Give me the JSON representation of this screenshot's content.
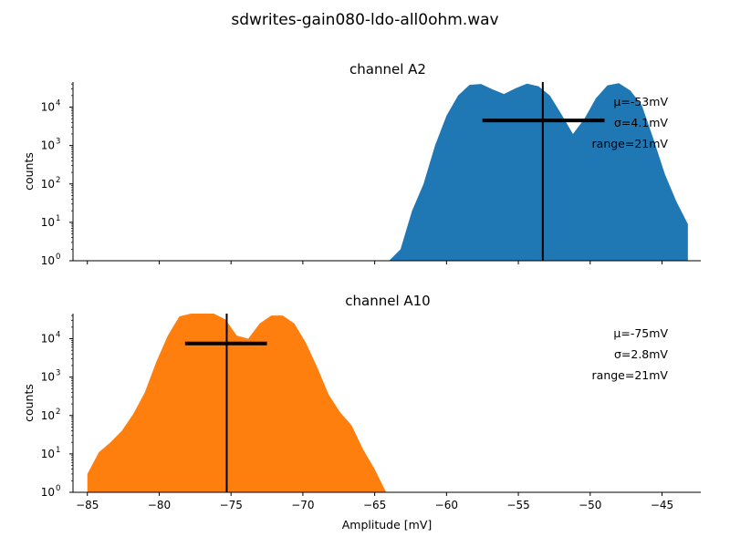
{
  "suptitle": "sdwrites-gain080-ldo-all0ohm.wav",
  "chart_data": [
    {
      "type": "area",
      "title": "channel A2",
      "xlabel": "",
      "ylabel": "counts",
      "yscale": "log",
      "xlim": [
        -86,
        -42.3
      ],
      "ylim": [
        1,
        45000
      ],
      "color": "#1f77b4",
      "x": [
        -64,
        -63.2,
        -62.4,
        -61.6,
        -60.8,
        -60,
        -59.2,
        -58.4,
        -57.6,
        -56.8,
        -56,
        -55.2,
        -54.4,
        -53.6,
        -52.8,
        -52,
        -51.2,
        -50.4,
        -49.6,
        -48.8,
        -48,
        -47.2,
        -46.4,
        -45.6,
        -44.8,
        -44,
        -43.2
      ],
      "y": [
        1,
        2,
        20,
        100,
        1000,
        6000,
        20000,
        38000,
        40000,
        29000,
        22000,
        31000,
        41000,
        35000,
        20000,
        6500,
        2000,
        5000,
        17000,
        37000,
        42000,
        27000,
        11000,
        1500,
        180,
        35,
        9
      ],
      "mean": -53.3,
      "sigma_line": {
        "x": [
          -57.5,
          -49
        ],
        "y": 4500
      },
      "stats": {
        "mu": "μ=-53mV",
        "sigma": "σ=4.1mV",
        "range": "range=21mV"
      }
    },
    {
      "type": "area",
      "title": "channel A10",
      "xlabel": "Amplitude [mV]",
      "ylabel": "counts",
      "yscale": "log",
      "xlim": [
        -86,
        -42.3
      ],
      "ylim": [
        1,
        45000
      ],
      "color": "#ff7f0e",
      "x": [
        -85,
        -84.2,
        -83.4,
        -82.6,
        -81.8,
        -81,
        -80.2,
        -79.4,
        -78.6,
        -77.8,
        -77,
        -76.2,
        -75.4,
        -74.6,
        -73.8,
        -73,
        -72.2,
        -71.4,
        -70.6,
        -69.8,
        -69,
        -68.2,
        -67.4,
        -66.6,
        -65.8,
        -65,
        -64.2
      ],
      "y": [
        3,
        11,
        20,
        40,
        110,
        400,
        2500,
        12000,
        38000,
        48000,
        45000,
        48000,
        32000,
        12000,
        10000,
        25000,
        40000,
        40000,
        25000,
        8000,
        1800,
        350,
        120,
        55,
        13,
        4,
        1
      ],
      "mean": -75.3,
      "sigma_line": {
        "x": [
          -78.2,
          -72.5
        ],
        "y": 7500
      },
      "stats": {
        "mu": "μ=-75mV",
        "sigma": "σ=2.8mV",
        "range": "range=21mV"
      }
    }
  ],
  "x_ticks": [
    -85,
    -80,
    -75,
    -70,
    -65,
    -60,
    -55,
    -50,
    -45
  ],
  "x_tick_labels": [
    "−85",
    "−80",
    "−75",
    "−70",
    "−65",
    "−60",
    "−55",
    "−50",
    "−45"
  ],
  "y_ticks": [
    1,
    10,
    100,
    1000,
    10000
  ],
  "y_tick_labels": [
    {
      "base": "10",
      "exp": "0"
    },
    {
      "base": "10",
      "exp": "1"
    },
    {
      "base": "10",
      "exp": "2"
    },
    {
      "base": "10",
      "exp": "3"
    },
    {
      "base": "10",
      "exp": "4"
    }
  ]
}
